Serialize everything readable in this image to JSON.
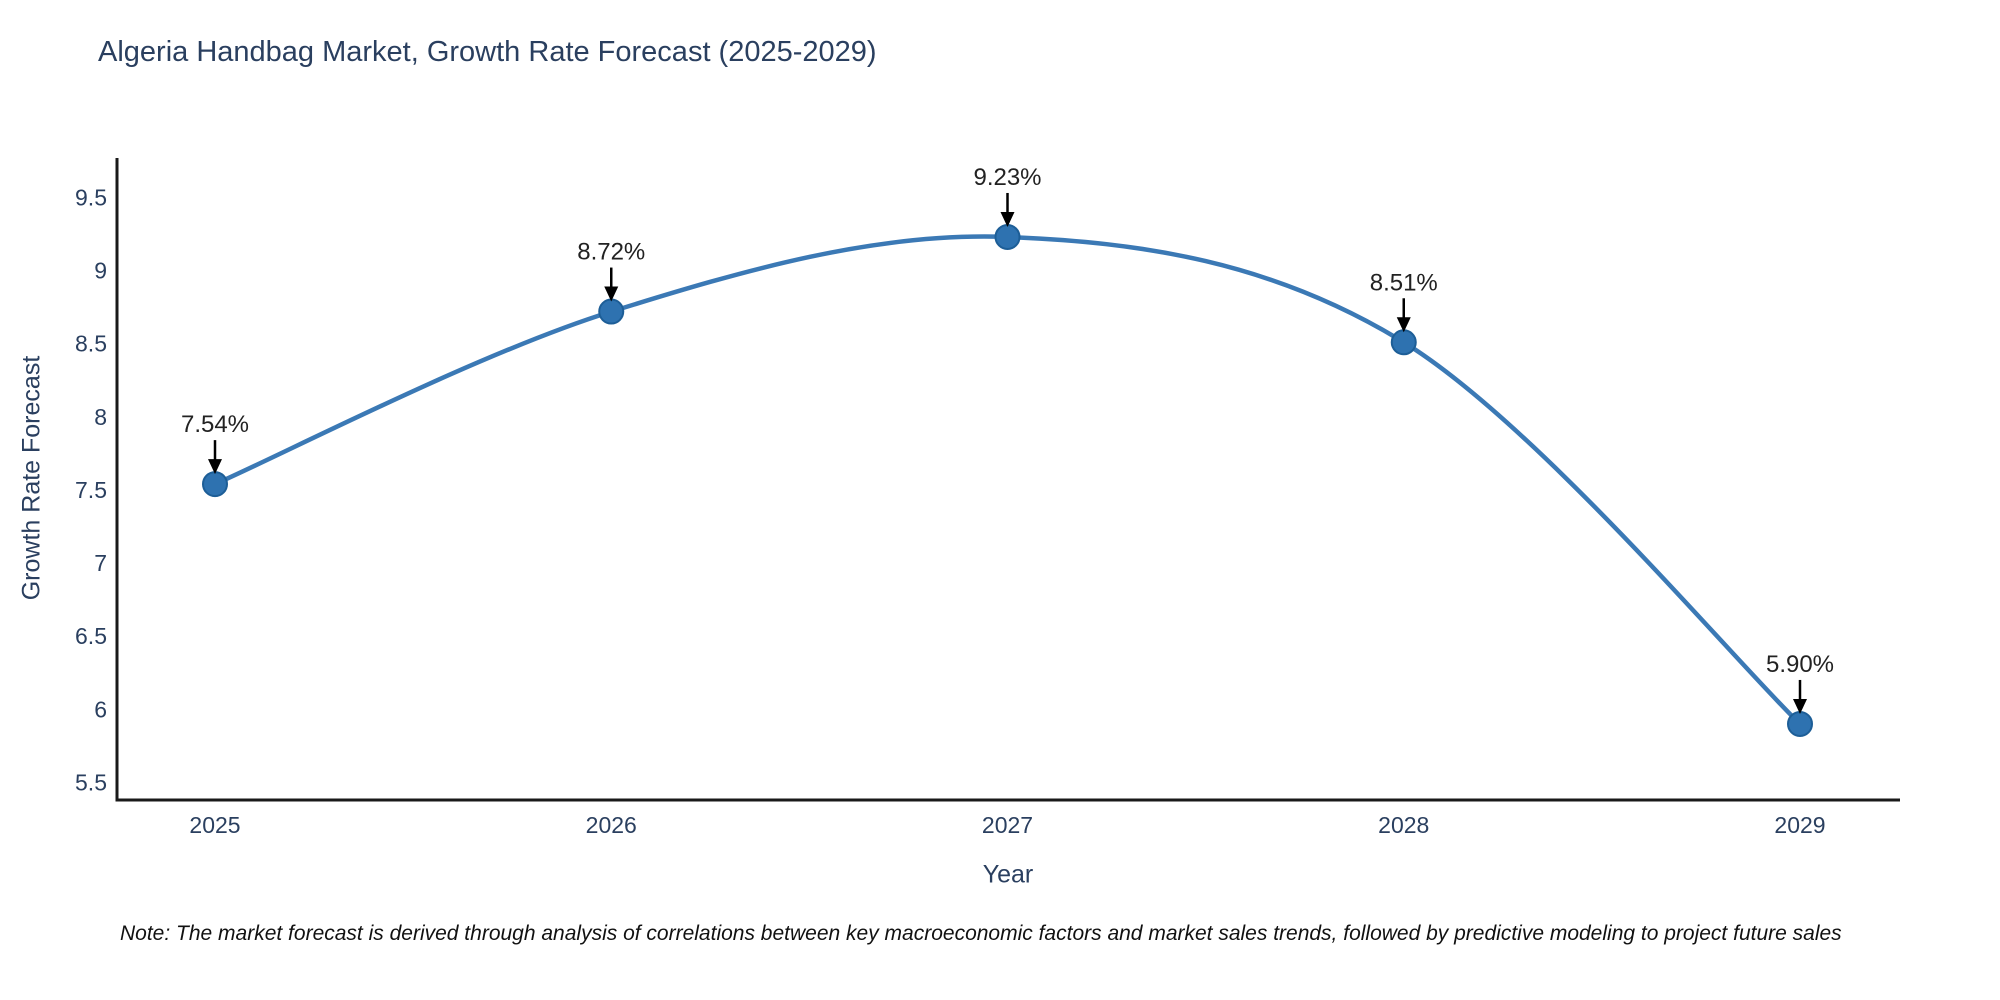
{
  "chart_data": {
    "type": "line",
    "title": "Algeria Handbag Market, Growth Rate Forecast (2025-2029)",
    "xlabel": "Year",
    "ylabel": "Growth Rate Forecast",
    "categories": [
      "2025",
      "2026",
      "2027",
      "2028",
      "2029"
    ],
    "values": [
      7.54,
      8.72,
      9.23,
      8.51,
      5.9
    ],
    "point_labels": [
      "7.54%",
      "8.72%",
      "9.23%",
      "8.51%",
      "5.90%"
    ],
    "y_ticks": [
      5.5,
      6,
      6.5,
      7,
      7.5,
      8,
      8.5,
      9,
      9.5
    ],
    "ylim": [
      5.38,
      9.77
    ],
    "line_shape": "spline",
    "grid": false,
    "legend": "none",
    "colors": {
      "line": "#3b79b5",
      "marker_fill": "#2e72b0",
      "marker_edge": "#1d5e97",
      "axis_line": "#1a1a1a",
      "tick_text": "#2a3f5f",
      "title_text": "#2a3f5f",
      "annotation_text": "#222222",
      "annotation_arrow": "#000000"
    }
  },
  "footnote": {
    "text": "Note: The market forecast is derived through analysis of correlations between key macroeconomic factors and market sales trends, followed by predictive modeling to project future sales"
  }
}
